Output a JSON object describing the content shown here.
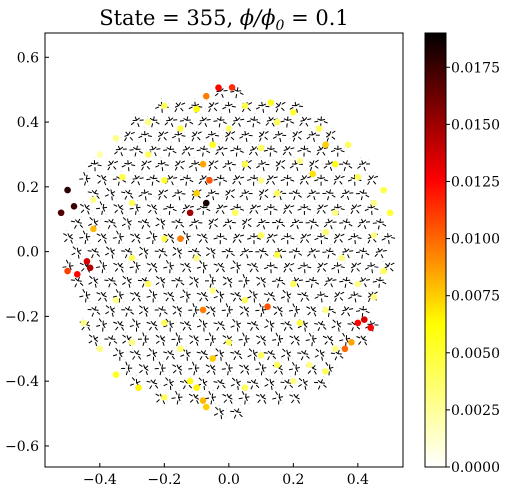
{
  "chart_data": {
    "type": "scatter",
    "title_prefix": "State = 355, ",
    "title_phi": "ϕ/ϕ",
    "title_sub": "0",
    "title_suffix": " = 0.1",
    "xlabel": "",
    "ylabel": "",
    "xlim": [
      -0.57,
      0.54
    ],
    "ylim": [
      -0.665,
      0.675
    ],
    "xticks": [
      -0.4,
      -0.2,
      0.0,
      0.2,
      0.4
    ],
    "xtick_labels": [
      "−0.4",
      "−0.2",
      "0.0",
      "0.2",
      "0.4"
    ],
    "yticks": [
      -0.6,
      -0.4,
      -0.2,
      0.0,
      0.2,
      0.4,
      0.6
    ],
    "ytick_labels": [
      "−0.6",
      "−0.4",
      "−0.2",
      "0.0",
      "0.2",
      "0.4",
      "0.6"
    ],
    "grid": false,
    "lattice": {
      "type": "penrose-like quasicrystal",
      "radius": 0.5,
      "style": "black-dashed-edges"
    },
    "colormap": "hot_r",
    "colorbar": {
      "range": [
        0.0,
        0.019
      ],
      "ticks": [
        0.0,
        0.0025,
        0.005,
        0.0075,
        0.01,
        0.0125,
        0.015,
        0.0175
      ],
      "tick_labels": [
        "0.0000",
        "0.0025",
        "0.0050",
        "0.0075",
        "0.0100",
        "0.0125",
        "0.0150",
        "0.0175"
      ]
    },
    "points": [
      [
        -0.032,
        0.506,
        0.0125
      ],
      [
        0.01,
        0.507,
        0.0115
      ],
      [
        -0.07,
        0.48,
        0.0095
      ],
      [
        0.13,
        0.46,
        0.0055
      ],
      [
        -0.2,
        0.45,
        0.004
      ],
      [
        -0.1,
        0.44,
        0.006
      ],
      [
        0.05,
        0.45,
        0.0045
      ],
      [
        0.2,
        0.43,
        0.005
      ],
      [
        -0.25,
        0.4,
        0.003
      ],
      [
        0.15,
        0.4,
        0.004
      ],
      [
        -0.15,
        0.38,
        0.0045
      ],
      [
        0.0,
        0.38,
        0.0035
      ],
      [
        0.28,
        0.38,
        0.004
      ],
      [
        -0.35,
        0.35,
        0.003
      ],
      [
        -0.05,
        0.33,
        0.0055
      ],
      [
        0.1,
        0.32,
        0.004
      ],
      [
        0.3,
        0.33,
        0.0075
      ],
      [
        0.37,
        0.33,
        0.004
      ],
      [
        -0.4,
        0.3,
        0.002
      ],
      [
        -0.25,
        0.3,
        0.004
      ],
      [
        -0.08,
        0.27,
        0.0085
      ],
      [
        0.05,
        0.27,
        0.0045
      ],
      [
        0.22,
        0.28,
        0.003
      ],
      [
        0.33,
        0.27,
        0.0055
      ],
      [
        -0.5,
        0.19,
        0.018
      ],
      [
        -0.48,
        0.14,
        0.0175
      ],
      [
        -0.52,
        0.12,
        0.017
      ],
      [
        -0.42,
        0.16,
        0.003
      ],
      [
        -0.33,
        0.23,
        0.0045
      ],
      [
        -0.2,
        0.22,
        0.005
      ],
      [
        -0.06,
        0.22,
        0.0105
      ],
      [
        0.1,
        0.22,
        0.003
      ],
      [
        0.26,
        0.24,
        0.007
      ],
      [
        0.4,
        0.23,
        0.004
      ],
      [
        0.48,
        0.19,
        0.0045
      ],
      [
        -0.1,
        0.18,
        0.0075
      ],
      [
        0.15,
        0.18,
        0.004
      ],
      [
        0.45,
        0.15,
        0.003
      ],
      [
        0.5,
        0.12,
        0.005
      ],
      [
        -0.3,
        0.15,
        0.004
      ],
      [
        -0.07,
        0.15,
        0.0185
      ],
      [
        -0.12,
        0.12,
        0.015
      ],
      [
        0.02,
        0.12,
        0.004
      ],
      [
        0.33,
        0.12,
        0.003
      ],
      [
        -0.42,
        0.07,
        0.008
      ],
      [
        -0.2,
        0.04,
        0.0045
      ],
      [
        -0.15,
        0.04,
        0.0095
      ],
      [
        0.1,
        0.05,
        0.004
      ],
      [
        0.3,
        0.06,
        0.0035
      ],
      [
        0.45,
        0.05,
        0.003
      ],
      [
        -0.5,
        -0.06,
        0.011
      ],
      [
        -0.47,
        -0.07,
        0.0125
      ],
      [
        -0.44,
        -0.03,
        0.0135
      ],
      [
        -0.43,
        -0.05,
        0.0145
      ],
      [
        -0.3,
        -0.02,
        0.004
      ],
      [
        -0.1,
        -0.02,
        0.003
      ],
      [
        0.15,
        -0.01,
        0.0045
      ],
      [
        0.35,
        -0.02,
        0.003
      ],
      [
        0.48,
        -0.06,
        0.004
      ],
      [
        -0.25,
        -0.1,
        0.004
      ],
      [
        -0.05,
        -0.12,
        0.003
      ],
      [
        0.2,
        -0.1,
        0.004
      ],
      [
        0.4,
        -0.1,
        0.003
      ],
      [
        -0.35,
        -0.15,
        0.003
      ],
      [
        -0.08,
        -0.18,
        0.0095
      ],
      [
        0.05,
        -0.15,
        0.004
      ],
      [
        0.12,
        -0.17,
        0.0105
      ],
      [
        0.3,
        -0.18,
        0.003
      ],
      [
        -0.45,
        -0.22,
        0.003
      ],
      [
        -0.2,
        -0.22,
        0.004
      ],
      [
        0.22,
        -0.22,
        0.0045
      ],
      [
        0.4,
        -0.22,
        0.0125
      ],
      [
        0.42,
        -0.21,
        0.0135
      ],
      [
        0.44,
        -0.235,
        0.0125
      ],
      [
        -0.3,
        -0.28,
        0.003
      ],
      [
        0.0,
        -0.28,
        0.004
      ],
      [
        0.33,
        -0.3,
        0.003
      ],
      [
        -0.15,
        -0.3,
        0.0035
      ],
      [
        0.1,
        -0.32,
        0.004
      ],
      [
        0.38,
        -0.28,
        0.0085
      ],
      [
        -0.05,
        -0.33,
        0.0075
      ],
      [
        0.25,
        -0.35,
        0.003
      ],
      [
        0.36,
        -0.3,
        0.01
      ],
      [
        0.15,
        -0.35,
        0.004
      ],
      [
        -0.35,
        -0.38,
        0.0055
      ],
      [
        -0.28,
        -0.42,
        0.0065
      ],
      [
        -0.1,
        -0.42,
        0.0065
      ],
      [
        -0.08,
        -0.46,
        0.008
      ],
      [
        -0.12,
        -0.4,
        0.006
      ],
      [
        -0.2,
        -0.45,
        0.004
      ],
      [
        -0.07,
        -0.48,
        0.0075
      ],
      [
        0.05,
        -0.42,
        0.004
      ],
      [
        0.2,
        -0.4,
        0.003
      ],
      [
        0.3,
        -0.37,
        0.004
      ],
      [
        -0.4,
        -0.3,
        0.003
      ],
      [
        0.45,
        -0.14,
        0.003
      ]
    ]
  }
}
